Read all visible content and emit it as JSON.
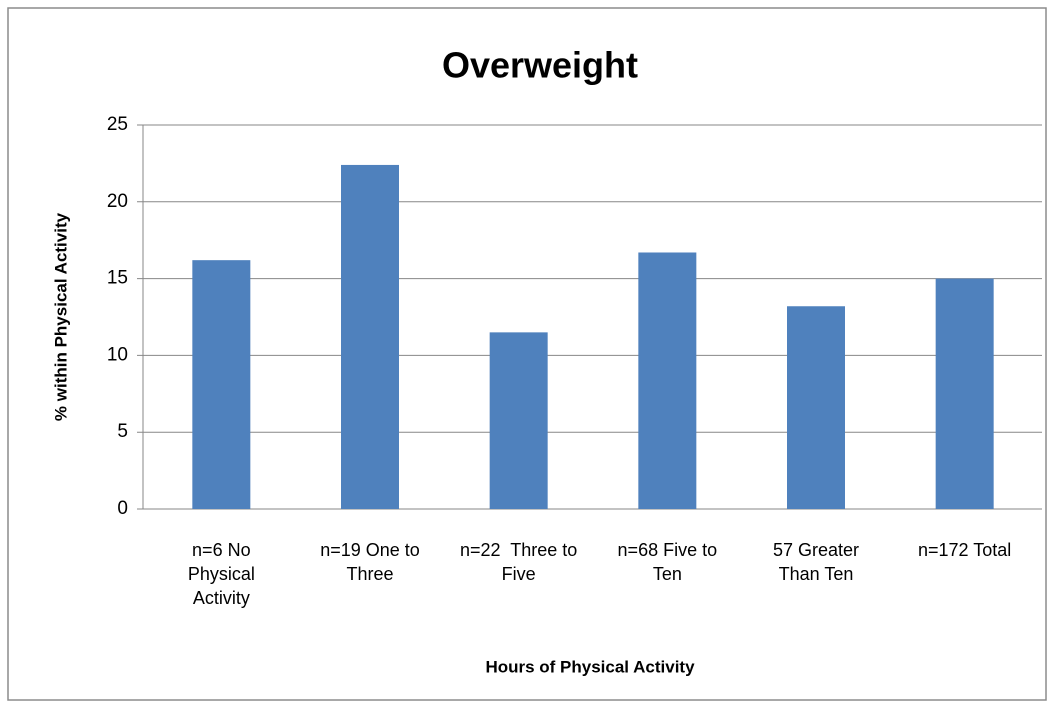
{
  "chart_data": {
    "type": "bar",
    "title": "Overweight",
    "x_label": "Hours of Physical Activity",
    "y_label": "% within Physical Activity",
    "categories": [
      "n=6 No Physical Activity",
      "n=19 One to Three",
      "n=22  Three to Five",
      "n=68 Five to Ten",
      "57 Greater Than Ten",
      "n=172 Total"
    ],
    "values": [
      16.2,
      22.4,
      11.5,
      16.7,
      13.2,
      15.0
    ],
    "color": "#4f81bd",
    "ylim": [
      0,
      25
    ],
    "yticks": [
      0,
      5,
      10,
      15,
      20,
      25
    ],
    "grid": true
  }
}
